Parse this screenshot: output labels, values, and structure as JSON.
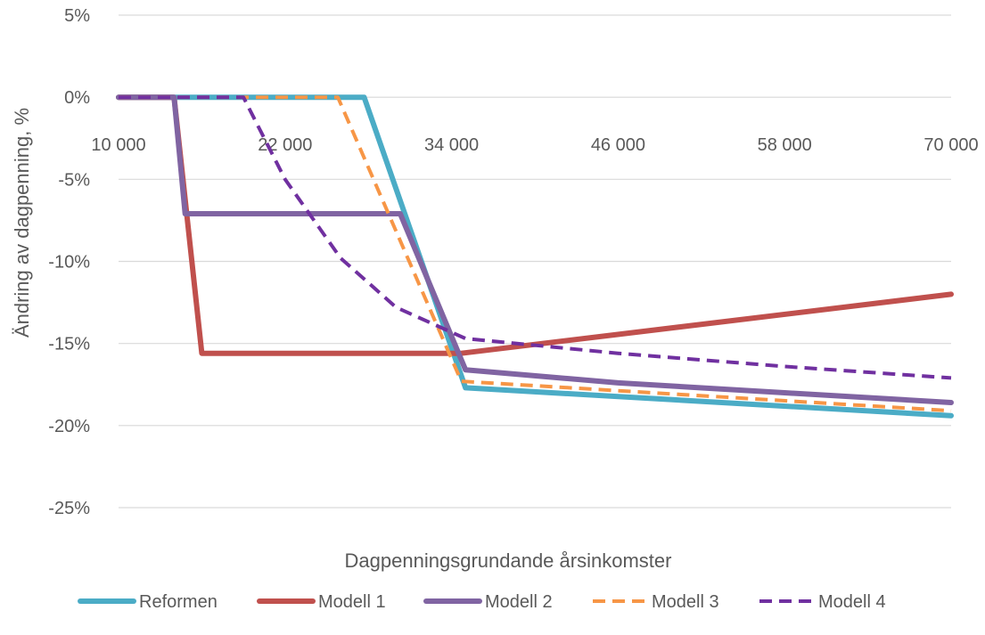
{
  "chart_data": {
    "type": "line",
    "title": "",
    "xlabel": "Dagpenningsgrundande årsinkomster",
    "ylabel": "Ändring av dagpenning, %",
    "xlim": [
      10000,
      70000
    ],
    "ylim": [
      -25,
      5
    ],
    "x_ticks": [
      10000,
      22000,
      34000,
      46000,
      58000,
      70000
    ],
    "x_tick_labels": [
      "10 000",
      "22 000",
      "34 000",
      "46 000",
      "58 000",
      "70 000"
    ],
    "y_ticks": [
      5,
      0,
      -5,
      -10,
      -15,
      -20,
      -25
    ],
    "y_tick_labels": [
      "5%",
      "0%",
      "-5%",
      "-10%",
      "-15%",
      "-20%",
      "-25%"
    ],
    "grid": "horizontal",
    "legend_position": "bottom",
    "series": [
      {
        "name": "Reformen",
        "color": "#4bacc6",
        "dash": "solid",
        "x": [
          10000,
          27700,
          35000,
          70000
        ],
        "y": [
          0,
          0,
          -17.7,
          -19.4
        ]
      },
      {
        "name": "Modell 1",
        "color": "#c0504d",
        "dash": "solid",
        "x": [
          10000,
          14000,
          16000,
          34700,
          70000
        ],
        "y": [
          0,
          0,
          -15.6,
          -15.6,
          -12.0
        ]
      },
      {
        "name": "Modell 2",
        "color": "#8064a2",
        "dash": "solid",
        "x": [
          10000,
          14000,
          14800,
          30300,
          35000,
          46000,
          58000,
          70000
        ],
        "y": [
          0,
          0,
          -7.1,
          -7.1,
          -16.6,
          -17.4,
          -18.0,
          -18.6
        ]
      },
      {
        "name": "Modell 3",
        "color": "#f79646",
        "dash": "dashed",
        "x": [
          10000,
          25800,
          34700,
          70000
        ],
        "y": [
          0,
          0,
          -17.3,
          -19.1
        ]
      },
      {
        "name": "Modell 4",
        "color": "#7030a0",
        "dash": "dashed",
        "x": [
          10000,
          19000,
          22000,
          26000,
          30000,
          35000,
          46000,
          58000,
          70000
        ],
        "y": [
          0,
          0,
          -5.0,
          -9.8,
          -12.8,
          -14.7,
          -15.6,
          -16.4,
          -17.1
        ]
      }
    ]
  }
}
